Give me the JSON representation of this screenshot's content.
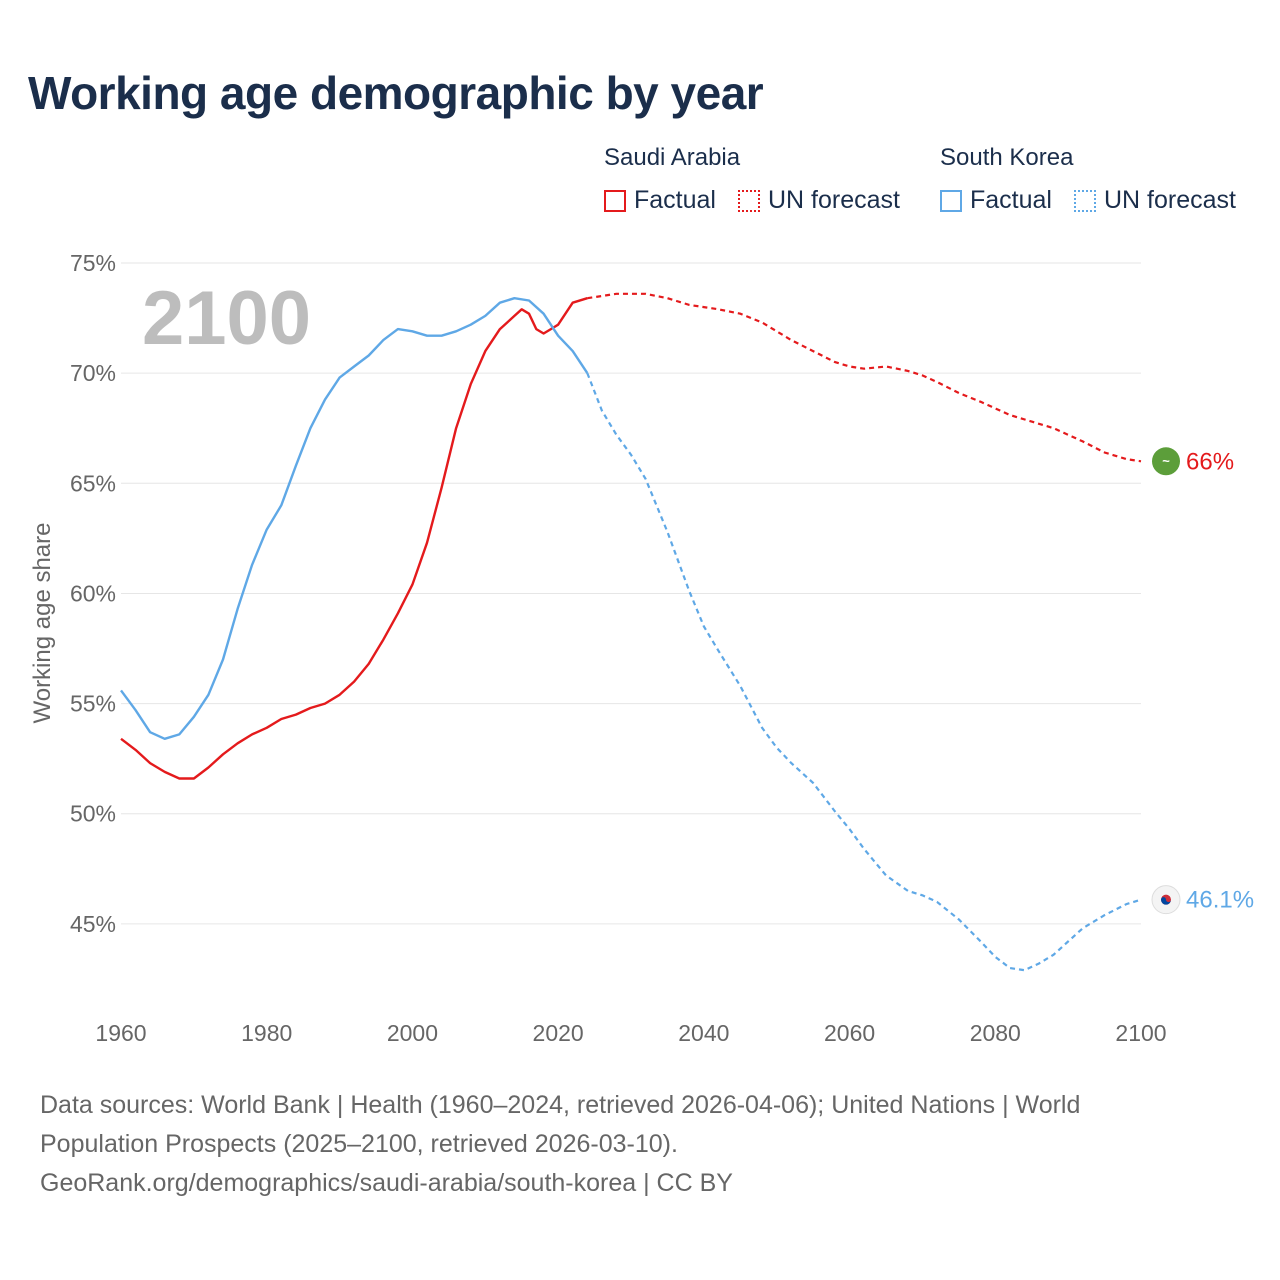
{
  "title": "Working age demographic by year",
  "legend": {
    "groups": [
      {
        "country": "Saudi Arabia",
        "color": "#e41a1c",
        "factual": "Factual",
        "forecast": "UN forecast"
      },
      {
        "country": "South Korea",
        "color": "#5fa8e6",
        "factual": "Factual",
        "forecast": "UN forecast"
      }
    ]
  },
  "year_watermark": "2100",
  "end_labels": {
    "saudi": "66%",
    "korea": "46.1%"
  },
  "flag_icons": {
    "saudi": "saudi-flag-icon",
    "korea": "korea-flag-icon"
  },
  "footer": {
    "line1": "Data sources: World Bank | Health (1960–2024, retrieved 2026-04-06); United Nations | World",
    "line2": "Population Prospects (2025–2100, retrieved 2026-03-10).",
    "line3": "GeoRank.org/demographics/saudi-arabia/south-korea | CC BY"
  },
  "chart_data": {
    "type": "line",
    "title": "Working age demographic by year",
    "xlabel": "",
    "ylabel": "Working age share",
    "xlim": [
      1960,
      2100
    ],
    "ylim": [
      41.5,
      75
    ],
    "x_ticks": [
      1960,
      1980,
      2000,
      2020,
      2040,
      2060,
      2080,
      2100
    ],
    "x_tick_labels": [
      "1960",
      "1980",
      "2000",
      "2020",
      "2040",
      "2060",
      "2080",
      "2100"
    ],
    "y_ticks": [
      45,
      50,
      55,
      60,
      65,
      70,
      75
    ],
    "y_tick_labels": [
      "45%",
      "50%",
      "55%",
      "60%",
      "65%",
      "70%",
      "75%"
    ],
    "grid": true,
    "factual_end_year": 2024,
    "series": [
      {
        "name": "Saudi Arabia",
        "color": "#e41a1c",
        "x": [
          1960,
          1962,
          1964,
          1966,
          1968,
          1970,
          1972,
          1974,
          1976,
          1978,
          1980,
          1982,
          1984,
          1986,
          1988,
          1990,
          1992,
          1994,
          1996,
          1998,
          2000,
          2002,
          2004,
          2006,
          2008,
          2010,
          2012,
          2014,
          2015,
          2016,
          2017,
          2018,
          2019,
          2020,
          2022,
          2024,
          2026,
          2028,
          2030,
          2032,
          2035,
          2038,
          2040,
          2042,
          2045,
          2048,
          2050,
          2052,
          2055,
          2058,
          2060,
          2062,
          2065,
          2068,
          2070,
          2072,
          2075,
          2078,
          2080,
          2082,
          2085,
          2088,
          2090,
          2092,
          2095,
          2098,
          2100
        ],
        "values": [
          53.4,
          52.9,
          52.3,
          51.9,
          51.6,
          51.6,
          52.1,
          52.7,
          53.2,
          53.6,
          53.9,
          54.3,
          54.5,
          54.8,
          55.0,
          55.4,
          56.0,
          56.8,
          57.9,
          59.1,
          60.4,
          62.3,
          64.8,
          67.5,
          69.5,
          71.0,
          72.0,
          72.6,
          72.9,
          72.7,
          72.0,
          71.8,
          72.0,
          72.2,
          73.2,
          73.4,
          73.5,
          73.6,
          73.6,
          73.6,
          73.4,
          73.1,
          73.0,
          72.9,
          72.7,
          72.3,
          71.9,
          71.5,
          71.0,
          70.5,
          70.3,
          70.2,
          70.3,
          70.1,
          69.9,
          69.6,
          69.1,
          68.7,
          68.4,
          68.1,
          67.8,
          67.5,
          67.2,
          66.9,
          66.4,
          66.1,
          66.0
        ]
      },
      {
        "name": "South Korea",
        "color": "#5fa8e6",
        "x": [
          1960,
          1962,
          1964,
          1966,
          1968,
          1970,
          1972,
          1974,
          1976,
          1978,
          1980,
          1982,
          1984,
          1986,
          1988,
          1990,
          1992,
          1994,
          1996,
          1998,
          2000,
          2002,
          2004,
          2006,
          2008,
          2010,
          2012,
          2014,
          2016,
          2018,
          2020,
          2022,
          2024,
          2026,
          2028,
          2030,
          2032,
          2035,
          2038,
          2040,
          2042,
          2045,
          2048,
          2050,
          2052,
          2055,
          2058,
          2060,
          2062,
          2065,
          2068,
          2070,
          2072,
          2075,
          2078,
          2080,
          2082,
          2084,
          2086,
          2088,
          2090,
          2092,
          2095,
          2098,
          2100
        ],
        "values": [
          55.6,
          54.7,
          53.7,
          53.4,
          53.6,
          54.4,
          55.4,
          57.0,
          59.3,
          61.3,
          62.9,
          64.0,
          65.8,
          67.5,
          68.8,
          69.8,
          70.3,
          70.8,
          71.5,
          72.0,
          71.9,
          71.7,
          71.7,
          71.9,
          72.2,
          72.6,
          73.2,
          73.4,
          73.3,
          72.7,
          71.7,
          71.0,
          70.0,
          68.3,
          67.2,
          66.3,
          65.2,
          62.8,
          60.1,
          58.5,
          57.4,
          55.8,
          53.9,
          53.0,
          52.3,
          51.4,
          50.1,
          49.3,
          48.4,
          47.2,
          46.5,
          46.3,
          46.0,
          45.2,
          44.2,
          43.5,
          43.0,
          42.9,
          43.2,
          43.6,
          44.2,
          44.8,
          45.4,
          45.9,
          46.1
        ]
      }
    ]
  }
}
